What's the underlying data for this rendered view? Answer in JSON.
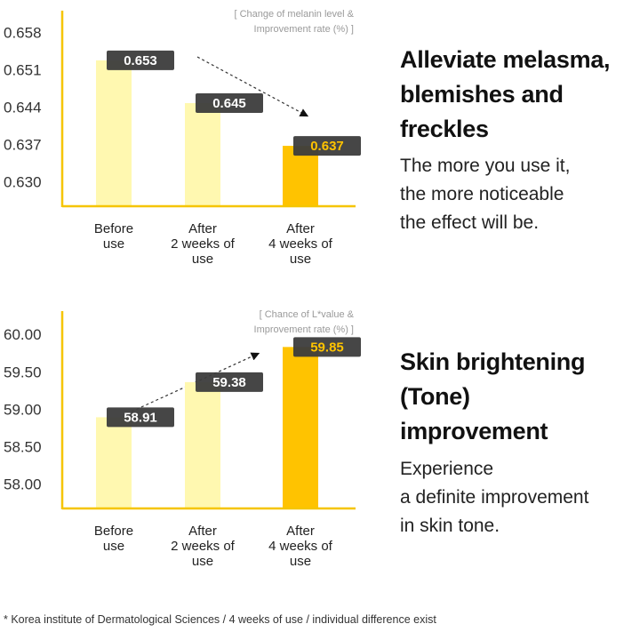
{
  "chart_data": [
    {
      "type": "bar",
      "note": "[ Change of melanin level &\nImprovement rate (%) ]",
      "categories": [
        "Before\nuse",
        "After\n2 weeks of\nuse",
        "After\n4 weeks of\nuse"
      ],
      "values": [
        0.653,
        0.645,
        0.637
      ],
      "colors": [
        "#fff8b0",
        "#fff8b0",
        "#ffc300"
      ],
      "label_colors": [
        "#ffffff",
        "#ffffff",
        "#ffc300"
      ],
      "axis_color": "#f5c500",
      "ylim": [
        0.6257,
        0.6623
      ],
      "yticks": [
        0.658,
        0.651,
        0.644,
        0.637,
        {
          "value": 0.63,
          "label": "0.630"
        }
      ]
    },
    {
      "type": "bar",
      "note": "[ Chance of L*value &\nImprovement rate (%) ]",
      "categories": [
        "Before\nuse",
        "After\n2 weeks of\nuse",
        "After\n4 weeks of\nuse"
      ],
      "values": [
        58.91,
        59.38,
        59.85
      ],
      "colors": [
        "#fff8b0",
        "#fff8b0",
        "#ffc300"
      ],
      "label_colors": [
        "#ffffff",
        "#ffffff",
        "#ffc300"
      ],
      "axis_color": "#f5c500",
      "ylim": [
        57.69,
        60.33
      ],
      "yticks": [
        {
          "value": 60,
          "label": "60.00"
        },
        {
          "value": 59.5,
          "label": "59.50"
        },
        {
          "value": 59,
          "label": "59.00"
        },
        {
          "value": 58.5,
          "label": "58.50"
        },
        {
          "value": 58,
          "label": "58.00"
        }
      ]
    }
  ],
  "panels": [
    {
      "heading": "Alleviate melasma,\nblemishes and\nfreckles",
      "body": "The more you use it,\nthe more noticeable\nthe effect will be."
    },
    {
      "heading": "Skin brightening\n(Tone)\nimprovement",
      "body": "Experience\na definite improvement\nin skin tone."
    }
  ],
  "footnote": "* Korea institute of Dermatological Sciences / 4 weeks of use / individual difference exist"
}
